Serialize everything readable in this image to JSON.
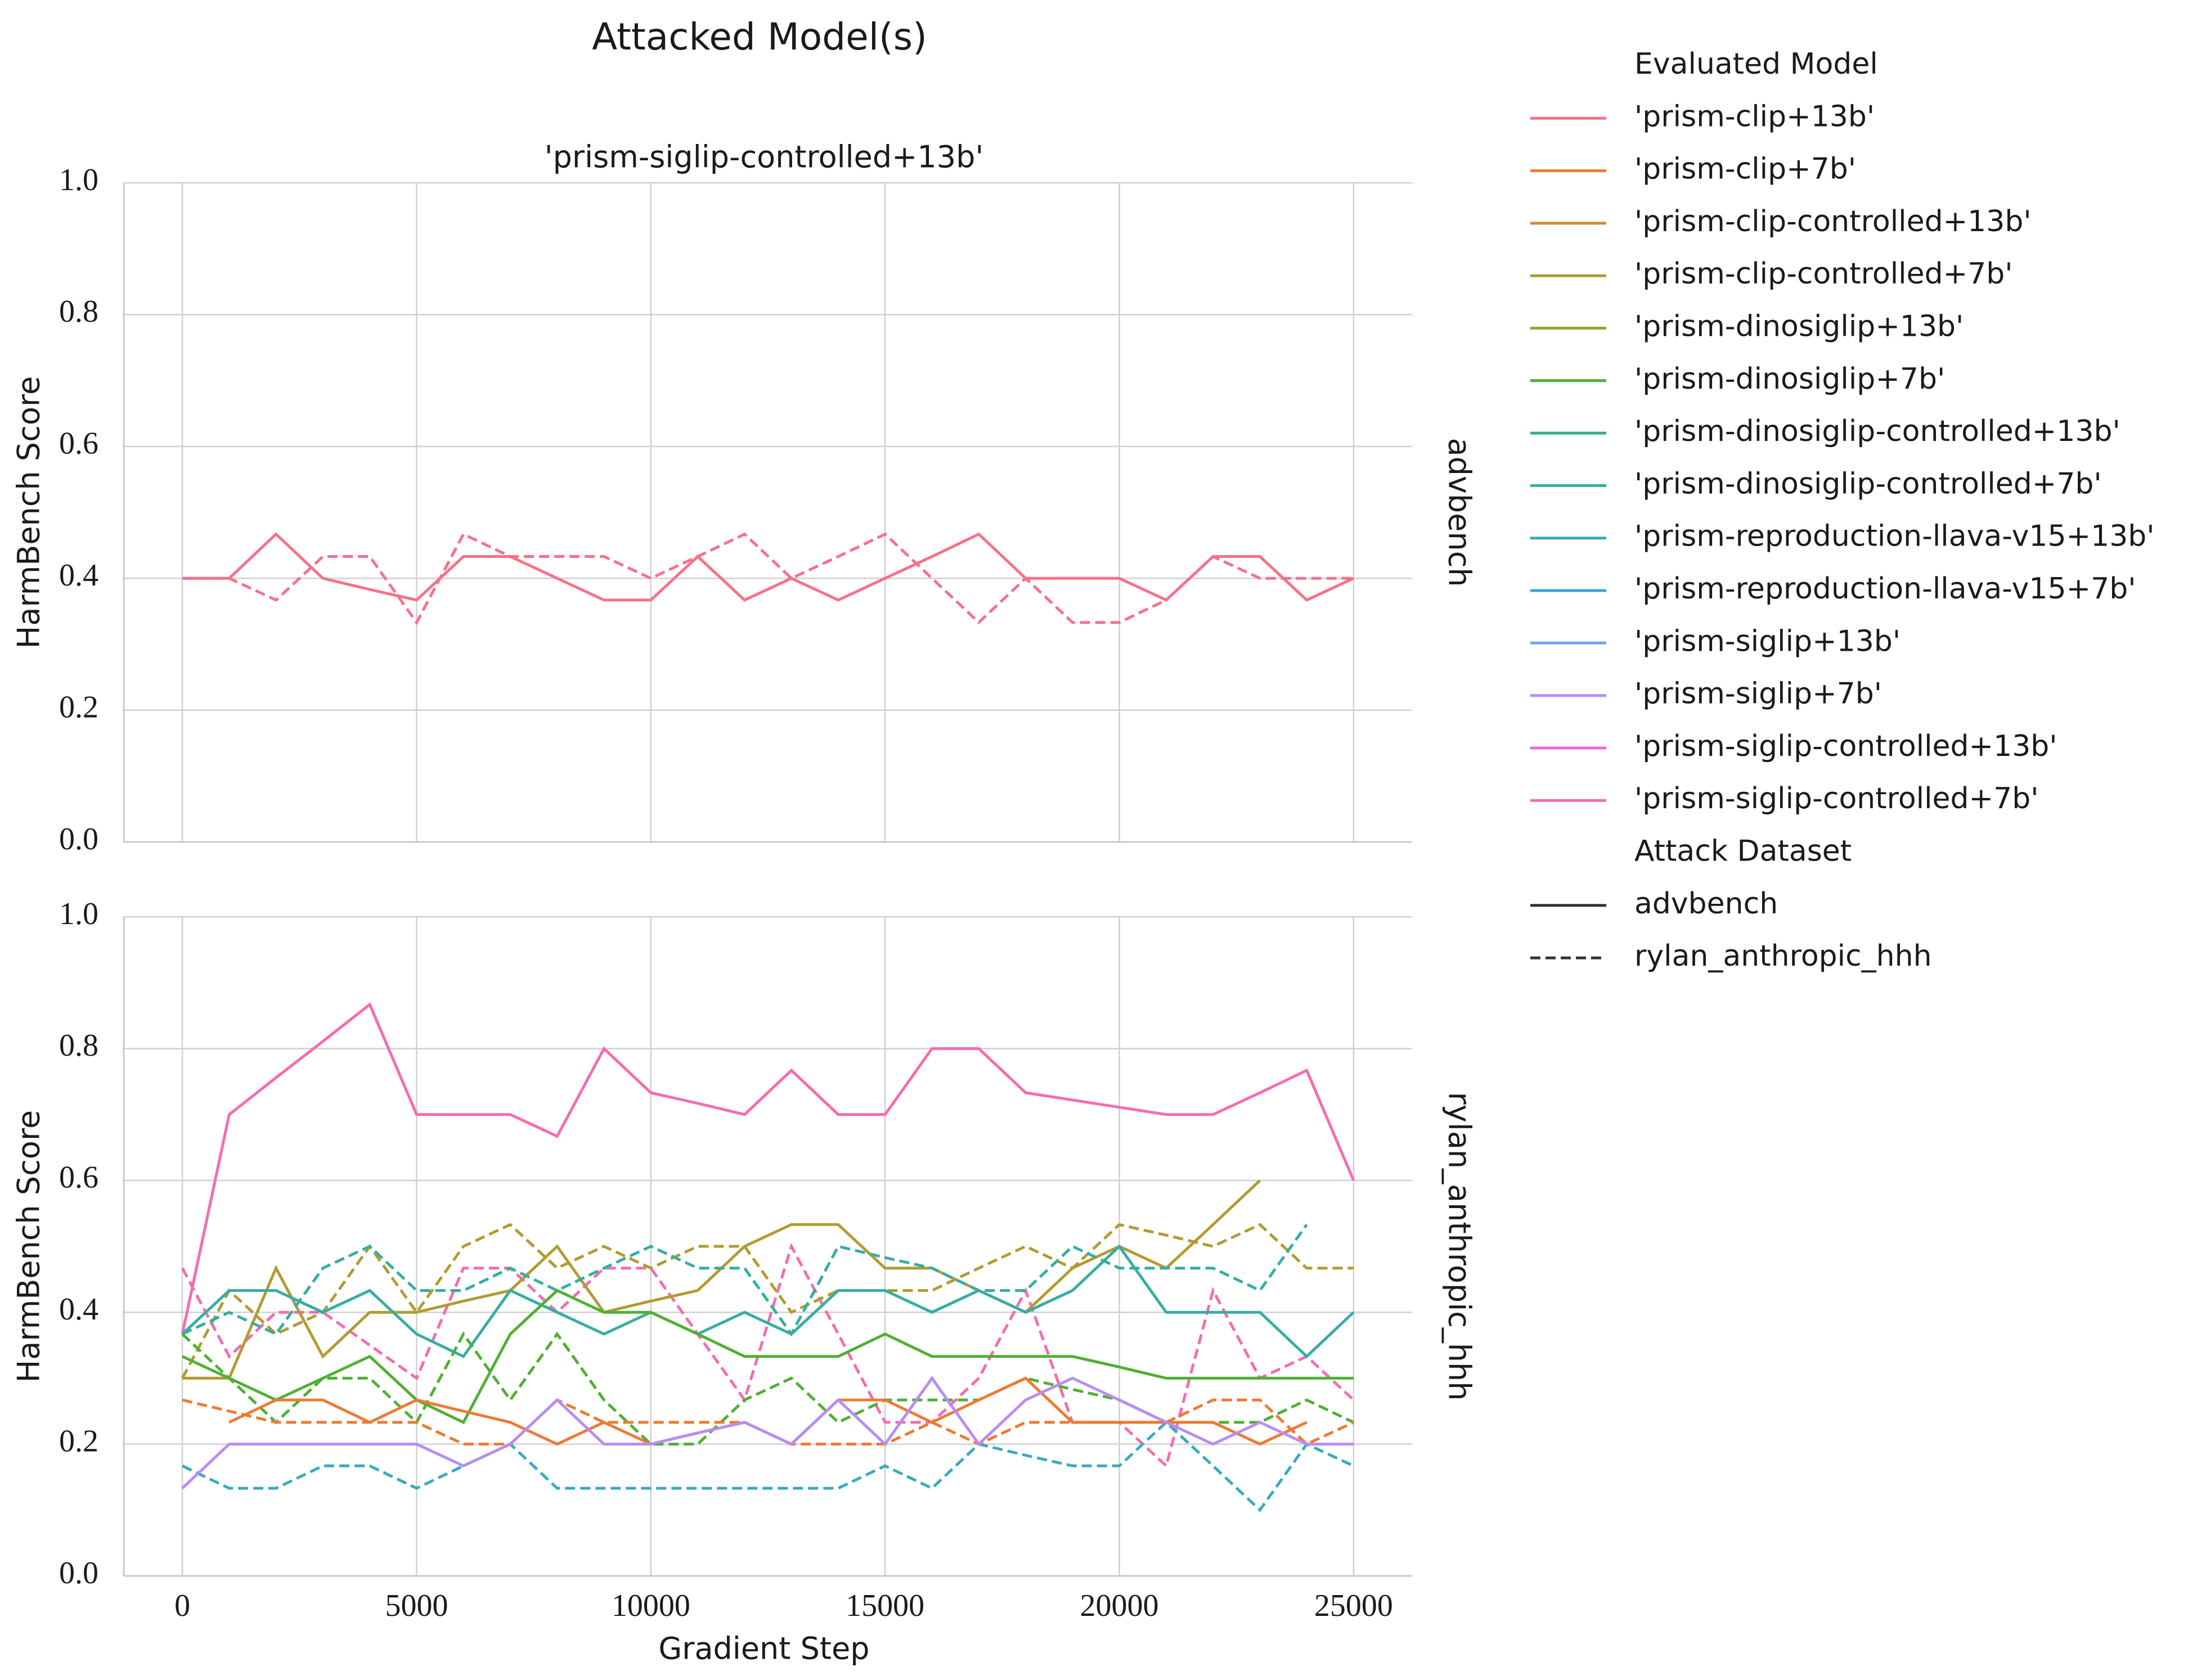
{
  "chart_data": {
    "type": "line",
    "title": "Attacked Model(s)",
    "column_title": "'prism-siglip-controlled+13b'",
    "xlabel": "Gradient Step",
    "ylabel": "HarmBench Score",
    "x": [
      0,
      1000,
      2000,
      3000,
      4000,
      5000,
      6000,
      7000,
      8000,
      9000,
      10000,
      11000,
      12000,
      13000,
      14000,
      15000,
      16000,
      17000,
      18000,
      19000,
      20000,
      21000,
      22000,
      23000,
      24000,
      25000
    ],
    "xlim": [
      -1250,
      26250
    ],
    "xticks": [
      0,
      5000,
      10000,
      15000,
      20000,
      25000
    ],
    "ylim": [
      0,
      1
    ],
    "yticks": [
      {
        "value": 0,
        "label": "0.0"
      },
      0.2,
      0.4,
      0.6,
      0.8,
      {
        "value": 1,
        "label": "1.0"
      }
    ],
    "grid": true,
    "legend": {
      "title": "Evaluated Model",
      "entries": [
        {
          "name": "'prism-clip+13b'",
          "color": "#f77189"
        },
        {
          "name": "'prism-clip+7b'",
          "color": "#ed7a33"
        },
        {
          "name": "'prism-clip-controlled+13b'",
          "color": "#d08b32"
        },
        {
          "name": "'prism-clip-controlled+7b'",
          "color": "#b29b31"
        },
        {
          "name": "'prism-dinosiglip+13b'",
          "color": "#97a431"
        },
        {
          "name": "'prism-dinosiglip+7b'",
          "color": "#4fb032"
        },
        {
          "name": "'prism-dinosiglip-controlled+13b'",
          "color": "#35ad86"
        },
        {
          "name": "'prism-dinosiglip-controlled+7b'",
          "color": "#36ada4"
        },
        {
          "name": "'prism-reproduction-llava-v15+13b'",
          "color": "#38aac0"
        },
        {
          "name": "'prism-reproduction-llava-v15+7b'",
          "color": "#3ba3e0"
        },
        {
          "name": "'prism-siglip+13b'",
          "color": "#7f9bf4"
        },
        {
          "name": "'prism-siglip+7b'",
          "color": "#b88cf4"
        },
        {
          "name": "'prism-siglip-controlled+13b'",
          "color": "#f263e0"
        },
        {
          "name": "'prism-siglip-controlled+7b'",
          "color": "#f66bb0"
        }
      ],
      "style_title": "Attack Dataset",
      "styles": [
        {
          "name": "advbench",
          "dash": "solid"
        },
        {
          "name": "rylan_anthropic_hhh",
          "dash": "dashed"
        }
      ]
    },
    "panels": [
      {
        "row_label": "advbench",
        "series": [
          {
            "model": 0,
            "style": 0,
            "values": [
              0.4,
              0.4,
              0.467,
              0.4,
              0.383,
              0.367,
              0.433,
              0.433,
              0.4,
              0.367,
              0.367,
              0.433,
              0.367,
              0.4,
              0.367,
              0.4,
              0.433,
              0.467,
              0.4,
              0.4,
              0.4,
              0.367,
              0.433,
              0.433,
              0.367,
              0.4
            ]
          },
          {
            "model": 0,
            "style": 1,
            "values": [
              0.4,
              0.4,
              0.367,
              0.433,
              0.433,
              0.333,
              0.467,
              0.433,
              0.433,
              0.433,
              0.4,
              0.433,
              0.467,
              0.4,
              0.433,
              0.467,
              0.4,
              0.333,
              0.4,
              0.333,
              0.333,
              0.367,
              0.433,
              0.4,
              0.4,
              0.4
            ]
          }
        ]
      },
      {
        "row_label": "rylan_anthropic_hhh",
        "series": [
          {
            "model": 13,
            "style": 0,
            "values": [
              0.367,
              0.7,
              0.756,
              0.811,
              0.867,
              0.7,
              0.7,
              0.7,
              0.667,
              0.8,
              0.733,
              0.717,
              0.7,
              0.767,
              0.7,
              0.7,
              0.8,
              0.8,
              0.733,
              0.722,
              0.711,
              0.7,
              0.7,
              0.733,
              0.767,
              0.6
            ]
          },
          {
            "model": 13,
            "style": 1,
            "values": [
              0.467,
              0.333,
              0.4,
              0.4,
              0.35,
              0.3,
              0.467,
              0.467,
              0.4,
              0.467,
              0.467,
              0.367,
              0.267,
              0.5,
              0.367,
              0.233,
              0.233,
              0.3,
              0.433,
              0.233,
              0.233,
              0.167,
              0.433,
              0.3,
              0.333,
              0.267
            ]
          },
          {
            "model": 3,
            "style": 0,
            "values": [
              0.3,
              0.3,
              0.467,
              0.333,
              0.4,
              0.4,
              0.417,
              0.433,
              0.5,
              0.4,
              0.417,
              0.433,
              0.5,
              0.533,
              0.533,
              0.467,
              0.467,
              0.433,
              0.4,
              0.467,
              0.5,
              0.467,
              0.533,
              0.6,
              null,
              null
            ]
          },
          {
            "model": 3,
            "style": 1,
            "values": [
              0.3,
              0.433,
              0.367,
              0.4,
              0.5,
              0.4,
              0.5,
              0.533,
              0.467,
              0.5,
              0.467,
              0.5,
              0.5,
              0.4,
              0.433,
              0.433,
              0.433,
              0.467,
              0.5,
              0.467,
              0.533,
              0.517,
              0.5,
              0.533,
              0.467,
              0.467
            ]
          },
          {
            "model": 7,
            "style": 0,
            "values": [
              0.367,
              0.433,
              0.433,
              0.4,
              0.433,
              0.367,
              0.333,
              0.433,
              0.4,
              0.367,
              0.4,
              0.367,
              0.4,
              0.367,
              0.433,
              0.433,
              0.4,
              0.433,
              0.4,
              0.433,
              0.5,
              0.4,
              0.4,
              0.4,
              0.333,
              0.4
            ]
          },
          {
            "model": 7,
            "style": 1,
            "values": [
              0.367,
              0.4,
              0.367,
              0.467,
              0.5,
              0.433,
              0.433,
              0.467,
              0.433,
              0.467,
              0.5,
              0.467,
              0.467,
              0.367,
              0.5,
              0.483,
              0.467,
              0.433,
              0.433,
              0.5,
              0.467,
              0.467,
              0.467,
              0.433,
              0.533,
              null
            ]
          },
          {
            "model": 8,
            "style": 1,
            "values": [
              0.167,
              0.133,
              0.133,
              0.167,
              0.167,
              0.133,
              0.167,
              0.2,
              0.133,
              0.133,
              0.133,
              0.133,
              0.133,
              0.133,
              0.133,
              0.167,
              0.133,
              0.2,
              0.183,
              0.167,
              0.167,
              0.233,
              0.167,
              0.1,
              0.2,
              0.167
            ]
          },
          {
            "model": 5,
            "style": 0,
            "values": [
              0.333,
              0.3,
              0.267,
              0.3,
              0.333,
              0.267,
              0.233,
              0.367,
              0.433,
              0.4,
              0.4,
              0.367,
              0.333,
              0.333,
              0.333,
              0.367,
              0.333,
              0.333,
              0.333,
              0.333,
              0.317,
              0.3,
              0.3,
              0.3,
              0.3,
              0.3
            ]
          },
          {
            "model": 5,
            "style": 1,
            "values": [
              0.367,
              0.3,
              0.233,
              0.3,
              0.3,
              0.233,
              0.367,
              0.267,
              0.367,
              0.267,
              0.2,
              0.2,
              0.267,
              0.3,
              0.233,
              0.267,
              0.267,
              0.267,
              0.3,
              0.283,
              0.267,
              0.233,
              0.233,
              0.233,
              0.267,
              0.233
            ]
          },
          {
            "model": 1,
            "style": 0,
            "values": [
              null,
              0.233,
              0.267,
              0.267,
              0.233,
              0.267,
              0.25,
              0.233,
              0.2,
              0.233,
              0.2,
              0.217,
              0.233,
              0.2,
              0.267,
              0.267,
              0.233,
              0.267,
              0.3,
              0.233,
              0.233,
              0.233,
              0.233,
              0.2,
              0.233,
              null
            ]
          },
          {
            "model": 1,
            "style": 1,
            "values": [
              0.267,
              0.25,
              0.233,
              0.233,
              0.233,
              0.233,
              0.2,
              0.2,
              0.267,
              0.233,
              0.233,
              0.233,
              0.233,
              0.2,
              0.2,
              0.2,
              0.233,
              0.2,
              0.233,
              0.233,
              0.233,
              0.233,
              0.267,
              0.267,
              0.2,
              0.233
            ]
          },
          {
            "model": 11,
            "style": 0,
            "values": [
              0.133,
              0.2,
              0.2,
              0.2,
              0.2,
              0.2,
              0.167,
              0.2,
              0.267,
              0.2,
              0.2,
              0.217,
              0.233,
              0.2,
              0.267,
              0.2,
              0.3,
              0.2,
              0.267,
              0.3,
              0.267,
              0.233,
              0.2,
              0.233,
              0.2,
              0.2
            ]
          }
        ]
      }
    ]
  }
}
